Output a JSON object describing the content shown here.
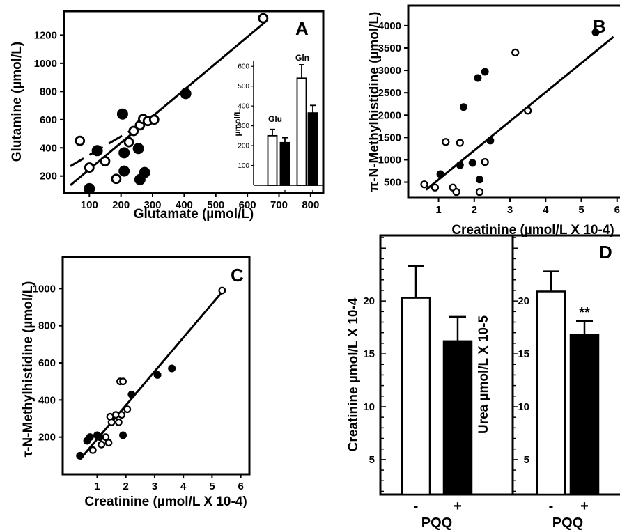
{
  "chart_data": [
    {
      "panel": "A",
      "type": "scatter",
      "xlabel": "Glutamate (µmol/L)",
      "ylabel": "Glutamine (µmol/L)",
      "xticks": [
        "100",
        "200",
        "300",
        "400",
        "500",
        "600",
        "700",
        "800"
      ],
      "yticks": [
        "200",
        "400",
        "600",
        "800",
        "1000",
        "1200"
      ],
      "xlim": [
        20,
        840
      ],
      "ylim": [
        80,
        1370
      ],
      "series": [
        {
          "marker": "open",
          "x": [
            70,
            100,
            150,
            185,
            225,
            240,
            260,
            270,
            285,
            305,
            650
          ],
          "y": [
            450,
            260,
            305,
            180,
            440,
            520,
            560,
            605,
            590,
            600,
            1320
          ]
        },
        {
          "marker": "filled",
          "x": [
            100,
            125,
            205,
            210,
            210,
            255,
            260,
            275,
            405
          ],
          "y": [
            110,
            380,
            640,
            365,
            235,
            395,
            175,
            225,
            785
          ]
        }
      ],
      "fits": [
        {
          "style": "solid",
          "x": [
            40,
            660
          ],
          "y": [
            135,
            1300
          ]
        },
        {
          "style": "dashed",
          "x": [
            40,
            290
          ],
          "y": [
            270,
            600
          ]
        }
      ],
      "inset": {
        "type": "bar",
        "ylabel": "µmol/L",
        "yticks": [
          "100",
          "200",
          "300",
          "400",
          "500",
          "600"
        ],
        "ylim": [
          0,
          650
        ],
        "groups": [
          {
            "label": "Glu",
            "categories": [
              "-",
              "+"
            ],
            "values": [
              250,
              215
            ],
            "errors": [
              32,
              25
            ]
          },
          {
            "label": "Gln",
            "categories": [
              "-",
              "+"
            ],
            "values": [
              540,
              365
            ],
            "errors": [
              68,
              38
            ]
          }
        ]
      }
    },
    {
      "panel": "B",
      "type": "scatter",
      "xlabel": "Creatinine (µmol/L X 10-4)",
      "ylabel": "π-N-Methylhistidine (µmol/L)",
      "xticks": [
        "1",
        "2",
        "3",
        "4",
        "5",
        "6"
      ],
      "yticks": [
        "500",
        "1000",
        "1500",
        "2000",
        "2500",
        "3000",
        "3500",
        "4000"
      ],
      "xlim": [
        0.15,
        6.2
      ],
      "ylim": [
        150,
        4450
      ],
      "series": [
        {
          "marker": "open",
          "x": [
            0.6,
            0.9,
            1.2,
            1.4,
            1.5,
            1.6,
            2.15,
            2.3,
            3.15,
            3.5
          ],
          "y": [
            450,
            380,
            1400,
            380,
            280,
            1380,
            280,
            950,
            3400,
            2100
          ]
        },
        {
          "marker": "filled",
          "x": [
            1.05,
            1.6,
            1.7,
            1.95,
            2.1,
            2.15,
            2.3,
            2.45,
            5.4
          ],
          "y": [
            680,
            880,
            2180,
            930,
            2830,
            560,
            2970,
            1430,
            3850
          ]
        }
      ],
      "fits": [
        {
          "style": "solid",
          "x": [
            0.65,
            5.9
          ],
          "y": [
            330,
            3750
          ]
        }
      ]
    },
    {
      "panel": "C",
      "type": "scatter",
      "xlabel": "Creatinine (µmol/L X 10-4)",
      "ylabel": "τ-N-Methylhistidine (µmol/L)",
      "xticks": [
        "1",
        "2",
        "3",
        "4",
        "5",
        "6"
      ],
      "yticks": [
        "200",
        "400",
        "600",
        "800",
        "1000"
      ],
      "xlim": [
        -0.2,
        6.3
      ],
      "ylim": [
        0,
        1170
      ],
      "series": [
        {
          "marker": "open",
          "x": [
            0.85,
            1.15,
            1.3,
            1.4,
            1.45,
            1.5,
            1.65,
            1.75,
            1.8,
            1.85,
            1.9,
            2.05,
            5.35
          ],
          "y": [
            130,
            160,
            200,
            170,
            310,
            280,
            320,
            280,
            500,
            320,
            500,
            350,
            990
          ]
        },
        {
          "marker": "filled",
          "x": [
            0.4,
            0.65,
            0.75,
            1.0,
            1.1,
            1.9,
            2.2,
            3.1,
            3.6
          ],
          "y": [
            100,
            180,
            200,
            210,
            200,
            210,
            430,
            535,
            570
          ]
        }
      ],
      "fits": [
        {
          "style": "solid",
          "x": [
            0.4,
            5.45
          ],
          "y": [
            80,
            1000
          ]
        }
      ]
    },
    {
      "panel": "D",
      "type": "bar",
      "plots": [
        {
          "ylabel": "Creatinine µmol/L  X 10-4",
          "yticks": [
            "5",
            "10",
            "15",
            "20"
          ],
          "ylim": [
            1.7,
            26.2
          ],
          "categories": [
            "-",
            "+"
          ],
          "values": [
            20.3,
            16.2
          ],
          "errors": [
            3.0,
            2.3
          ],
          "fills": [
            "open",
            "filled"
          ],
          "significance": [
            "",
            ""
          ]
        },
        {
          "ylabel": "Urea µmol/L  X 10-5",
          "yticks": [
            "5",
            "10",
            "15",
            "20"
          ],
          "ylim": [
            1.7,
            26.2
          ],
          "categories": [
            "-",
            "+"
          ],
          "values": [
            20.9,
            16.8
          ],
          "errors": [
            1.9,
            1.3
          ],
          "fills": [
            "open",
            "filled"
          ],
          "significance": [
            "",
            "**"
          ]
        }
      ],
      "xlabel": "PQQ"
    }
  ]
}
